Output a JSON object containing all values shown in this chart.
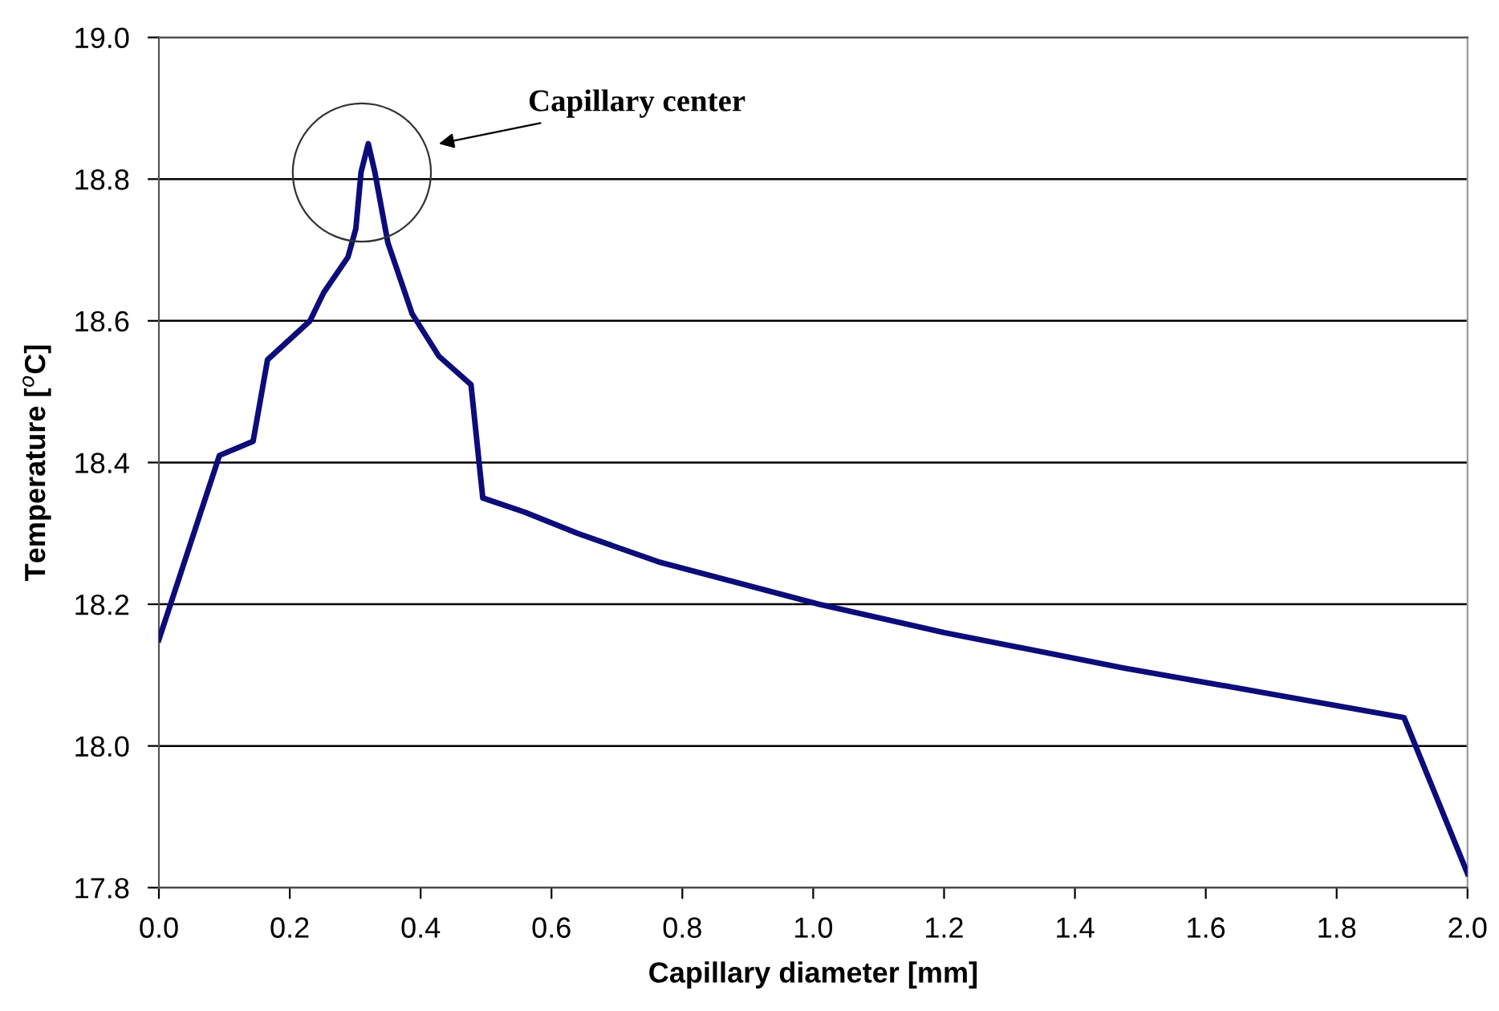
{
  "chart_data": {
    "type": "line",
    "xlabel": "Capillary diameter [mm]",
    "ylabel": "Temperature [$^{o}$C]",
    "x": [
      0,
      0.0925,
      0.144,
      0.166,
      0.231,
      0.252,
      0.289,
      0.301,
      0.309,
      0.32,
      0.33,
      0.35,
      0.387,
      0.428,
      0.477,
      0.495,
      0.559,
      0.64,
      0.763,
      0.886,
      1.009,
      1.2,
      1.475,
      1.72,
      1.903,
      2.0
    ],
    "series": [
      {
        "color": "#0c0c7a",
        "values": [
          18.15,
          18.41,
          18.43,
          18.545,
          18.6,
          18.64,
          18.69,
          18.73,
          18.81,
          18.85,
          18.81,
          18.71,
          18.61,
          18.55,
          18.51,
          18.35,
          18.33,
          18.3,
          18.26,
          18.23,
          18.2,
          18.16,
          18.11,
          18.07,
          18.04,
          17.82
        ]
      }
    ],
    "xlim": [
      0,
      2.0
    ],
    "xticks": [
      {
        "value": 0,
        "label": "0.0"
      },
      0.2,
      0.4,
      0.6,
      0.8,
      {
        "value": 1,
        "label": "1.0"
      },
      1.2,
      1.4,
      1.6,
      1.8,
      {
        "value": 2,
        "label": "2.0"
      }
    ],
    "ylim": [
      17.8,
      19.0
    ],
    "yticks": [
      17.8,
      {
        "value": 18,
        "label": "18.0"
      },
      18.2,
      18.4,
      18.6,
      18.8,
      {
        "value": 19,
        "label": "19.0"
      }
    ],
    "grid": "y",
    "legend": false,
    "marker": "none",
    "line_style": "solid",
    "annotations": [
      "Capillary center"
    ]
  }
}
